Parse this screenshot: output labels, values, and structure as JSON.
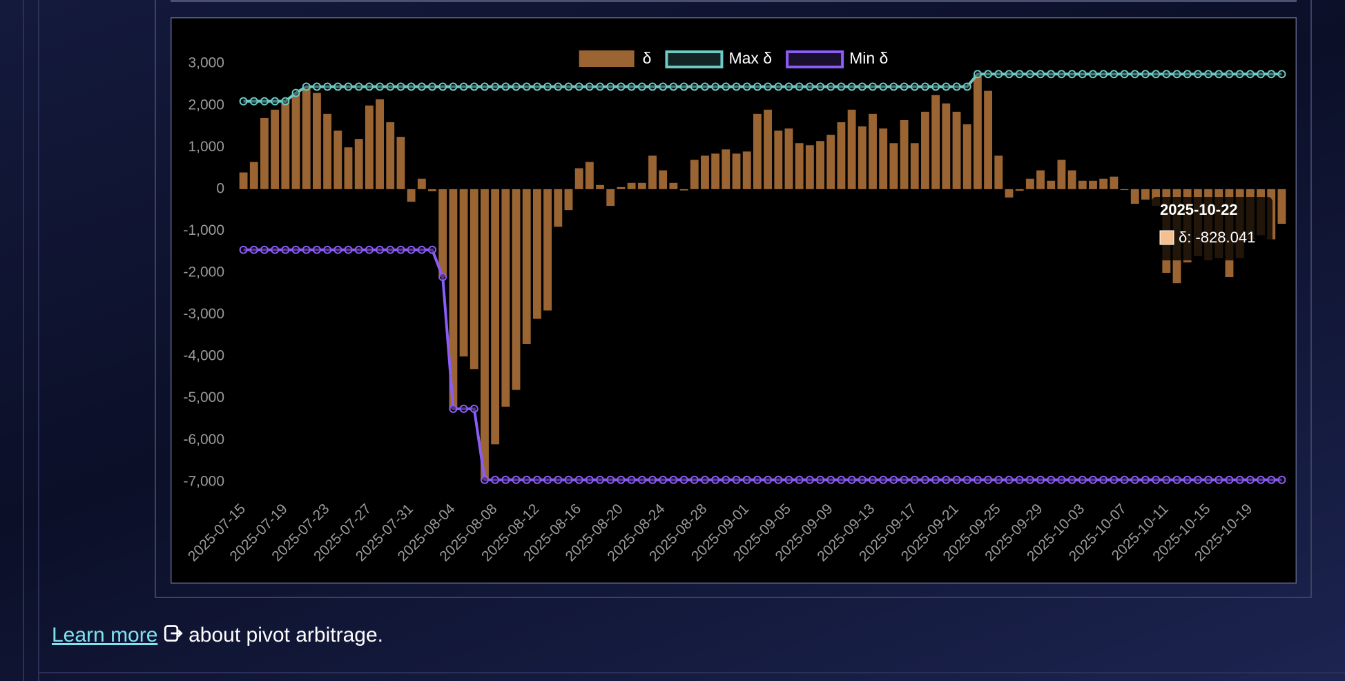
{
  "chart_data": {
    "type": "bar",
    "categories": [
      "2025-07-15",
      null,
      null,
      null,
      "2025-07-19",
      null,
      null,
      null,
      "2025-07-23",
      null,
      null,
      null,
      "2025-07-27",
      null,
      null,
      null,
      "2025-07-31",
      null,
      null,
      null,
      "2025-08-04",
      null,
      null,
      null,
      "2025-08-08",
      null,
      null,
      null,
      "2025-08-12",
      null,
      null,
      null,
      "2025-08-16",
      null,
      null,
      null,
      "2025-08-20",
      null,
      null,
      null,
      "2025-08-24",
      null,
      null,
      null,
      "2025-08-28",
      null,
      null,
      null,
      "2025-09-01",
      null,
      null,
      null,
      "2025-09-05",
      null,
      null,
      null,
      "2025-09-09",
      null,
      null,
      null,
      "2025-09-13",
      null,
      null,
      null,
      "2025-09-17",
      null,
      null,
      null,
      "2025-09-21",
      null,
      null,
      null,
      "2025-09-25",
      null,
      null,
      null,
      "2025-09-29",
      null,
      null,
      null,
      "2025-10-03",
      null,
      null,
      null,
      "2025-10-07",
      null,
      null,
      null,
      "2025-10-11",
      null,
      null,
      null,
      "2025-10-15",
      null,
      null,
      null,
      "2025-10-19",
      null,
      null,
      null
    ],
    "series": [
      {
        "name": "δ",
        "type": "bar",
        "color": "#9b6533",
        "values": [
          400,
          650,
          1700,
          1900,
          2100,
          2300,
          2450,
          2300,
          1800,
          1400,
          1000,
          1200,
          2000,
          2150,
          1600,
          1250,
          -300,
          250,
          -50,
          -2100,
          -5250,
          -4000,
          -4300,
          -6950,
          -6100,
          -5200,
          -4800,
          -3700,
          -3100,
          -2900,
          -900,
          -500,
          500,
          650,
          100,
          -400,
          50,
          150,
          150,
          800,
          450,
          150,
          -30,
          700,
          800,
          850,
          950,
          850,
          900,
          1800,
          1900,
          1400,
          1450,
          1100,
          1050,
          1150,
          1300,
          1600,
          1900,
          1500,
          1800,
          1450,
          1100,
          1650,
          1100,
          1850,
          2250,
          2050,
          1850,
          1550,
          2750,
          2350,
          800,
          -200,
          -40,
          250,
          450,
          200,
          700,
          450,
          200,
          200,
          250,
          300,
          -20,
          -350,
          -250,
          -400,
          -2000,
          -2250,
          -1750,
          -1600,
          -1700,
          -1650,
          -2100,
          -1650,
          -1200,
          -1100,
          -1200,
          -828.041
        ]
      },
      {
        "name": "Max δ",
        "type": "line",
        "color": "#6ecac5",
        "values": [
          2100,
          2100,
          2100,
          2100,
          2100,
          2300,
          2450,
          2450,
          2450,
          2450,
          2450,
          2450,
          2450,
          2450,
          2450,
          2450,
          2450,
          2450,
          2450,
          2450,
          2450,
          2450,
          2450,
          2450,
          2450,
          2450,
          2450,
          2450,
          2450,
          2450,
          2450,
          2450,
          2450,
          2450,
          2450,
          2450,
          2450,
          2450,
          2450,
          2450,
          2450,
          2450,
          2450,
          2450,
          2450,
          2450,
          2450,
          2450,
          2450,
          2450,
          2450,
          2450,
          2450,
          2450,
          2450,
          2450,
          2450,
          2450,
          2450,
          2450,
          2450,
          2450,
          2450,
          2450,
          2450,
          2450,
          2450,
          2450,
          2450,
          2450,
          2750,
          2750,
          2750,
          2750,
          2750,
          2750,
          2750,
          2750,
          2750,
          2750,
          2750,
          2750,
          2750,
          2750,
          2750,
          2750,
          2750,
          2750,
          2750,
          2750,
          2750,
          2750,
          2750,
          2750,
          2750,
          2750,
          2750,
          2750,
          2750,
          2750
        ]
      },
      {
        "name": "Min δ",
        "type": "line",
        "color": "#8b5cf6",
        "values": [
          -1450,
          -1450,
          -1450,
          -1450,
          -1450,
          -1450,
          -1450,
          -1450,
          -1450,
          -1450,
          -1450,
          -1450,
          -1450,
          -1450,
          -1450,
          -1450,
          -1450,
          -1450,
          -1450,
          -2100,
          -5250,
          -5250,
          -5250,
          -6950,
          -6950,
          -6950,
          -6950,
          -6950,
          -6950,
          -6950,
          -6950,
          -6950,
          -6950,
          -6950,
          -6950,
          -6950,
          -6950,
          -6950,
          -6950,
          -6950,
          -6950,
          -6950,
          -6950,
          -6950,
          -6950,
          -6950,
          -6950,
          -6950,
          -6950,
          -6950,
          -6950,
          -6950,
          -6950,
          -6950,
          -6950,
          -6950,
          -6950,
          -6950,
          -6950,
          -6950,
          -6950,
          -6950,
          -6950,
          -6950,
          -6950,
          -6950,
          -6950,
          -6950,
          -6950,
          -6950,
          -6950,
          -6950,
          -6950,
          -6950,
          -6950,
          -6950,
          -6950,
          -6950,
          -6950,
          -6950,
          -6950,
          -6950,
          -6950,
          -6950,
          -6950,
          -6950,
          -6950,
          -6950,
          -6950,
          -6950,
          -6950,
          -6950,
          -6950,
          -6950,
          -6950,
          -6950,
          -6950,
          -6950,
          -6950,
          -6950
        ]
      }
    ],
    "ylim": [
      -7300,
      3300
    ],
    "yticks": [
      {
        "value": 3000,
        "label": "3,000"
      },
      {
        "value": 2000,
        "label": "2,000"
      },
      {
        "value": 1000,
        "label": "1,000"
      },
      0,
      {
        "value": -1000,
        "label": "-1,000"
      },
      {
        "value": -2000,
        "label": "-2,000"
      },
      {
        "value": -3000,
        "label": "-3,000"
      },
      {
        "value": -4000,
        "label": "-4,000"
      },
      {
        "value": -5000,
        "label": "-5,000"
      },
      {
        "value": -6000,
        "label": "-6,000"
      },
      {
        "value": -7000,
        "label": "-7,000"
      }
    ],
    "grid": false,
    "legend": "top",
    "tooltip": {
      "title": "2025-10-22",
      "label": "δ: -828.041"
    }
  },
  "footer": {
    "link": "Learn more",
    "text": "about pivot arbitrage."
  }
}
